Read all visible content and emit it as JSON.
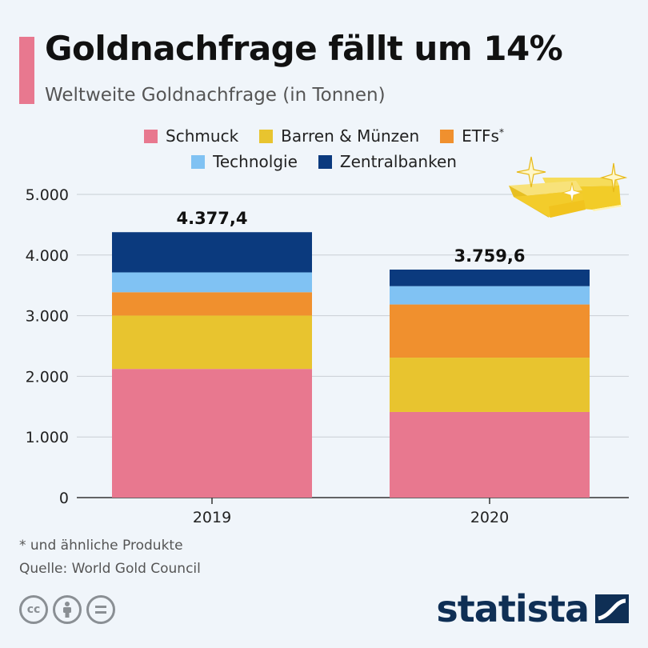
{
  "header": {
    "title": "Goldnachfrage fällt um 14%",
    "subtitle": "Weltweite Goldnachfrage (in Tonnen)"
  },
  "legend": {
    "row1": [
      {
        "label": "Schmuck",
        "color": "#e8788f",
        "sup": ""
      },
      {
        "label": "Barren & Münzen",
        "color": "#e8c42f",
        "sup": ""
      },
      {
        "label": "ETFs",
        "color": "#f0902e",
        "sup": "*"
      }
    ],
    "row2": [
      {
        "label": "Technolgie",
        "color": "#80c2f3",
        "sup": ""
      },
      {
        "label": "Zentralbanken",
        "color": "#0b3a7e",
        "sup": ""
      }
    ]
  },
  "chart_data": {
    "type": "bar",
    "stacked": true,
    "categories": [
      "2019",
      "2020"
    ],
    "series": [
      {
        "name": "Schmuck",
        "color": "#e8788f",
        "values": [
          2122,
          1412
        ]
      },
      {
        "name": "Barren & Münzen",
        "color": "#e8c42f",
        "values": [
          880,
          896
        ]
      },
      {
        "name": "ETFs",
        "color": "#f0902e",
        "values": [
          385,
          877
        ]
      },
      {
        "name": "Technolgie",
        "color": "#80c2f3",
        "values": [
          327,
          302
        ]
      },
      {
        "name": "Zentralbanken",
        "color": "#0b3a7e",
        "values": [
          663,
          273
        ]
      }
    ],
    "totals": [
      "4.377,4",
      "3.759,6"
    ],
    "ylim": [
      0,
      5000
    ],
    "yticks": [
      0,
      1000,
      2000,
      3000,
      4000,
      5000
    ],
    "ytick_labels": [
      "0",
      "1.000",
      "2.000",
      "3.000",
      "4.000",
      "5.000"
    ],
    "grid": true,
    "legend_position": "top-center"
  },
  "footer": {
    "note": "* und ähnliche Produkte",
    "source": "Quelle: World Gold Council",
    "brand": "statista",
    "cc_icons": [
      "cc-icon",
      "attribution-icon",
      "no-derivatives-icon"
    ]
  }
}
